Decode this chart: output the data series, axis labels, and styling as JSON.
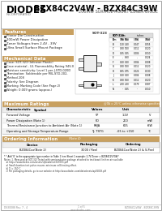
{
  "title": "BZX84C2V4W - BZX84C39W",
  "subtitle": "200mW SURFACE MOUNT ZENER DIODE",
  "logo_text": "DIODES",
  "logo_sub": "INCORPORATED",
  "bg_color": "#f5f5f5",
  "section_header_color": "#c8a060",
  "border_color": "#aaaaaa",
  "text_color": "#222222",
  "footer_left": "DS30088 Rev. 7 - 4",
  "footer_center": "1 of 5",
  "footer_url": "www.diodes.com",
  "footer_right": "BZX84C2V4W - BZX84C39W",
  "features": [
    "Planar Die Construction",
    "200mW Power Dissipation",
    "Zener Voltages from 2.4V - 39V",
    "Ultra Small Surface Mount Package"
  ],
  "mechanical_data": [
    "Case: SOT-323 (Infineon Plastic)",
    "Case material - UL Flammability Rating 94V-0",
    "Moisture sensitivity: Level 1 per J-STD-020D",
    "Termination: Solderable per MIL-STD-202,",
    "Method 208",
    "Polarity: See Diagram",
    "Marking: Marking Code (See Page 2)",
    "Weight: 0.009 grams (approx.)"
  ],
  "max_ratings_title": "Maximum Ratings",
  "max_ratings_note": "@TA = 25°C unless otherwise specified",
  "max_ratings_headers": [
    "Characteristic",
    "Symbol",
    "Values",
    "Unit"
  ],
  "max_ratings_rows": [
    [
      "Forward Voltage",
      "VF",
      "1.2V",
      "V"
    ],
    [
      "Power Dissipation (Note 1)",
      "PD",
      "200",
      "mW"
    ],
    [
      "Thermal Resistance Junction to Ambient Air (Note 1)",
      "RθJA",
      "625",
      "K/W"
    ],
    [
      "Operating and Storage Temperature Range",
      "TJ, TSTG",
      "-65 to +150",
      "°C"
    ]
  ],
  "ordering_title": "Ordering Information",
  "ordering_note": "(Note 4)",
  "ordering_headers": [
    "Device",
    "Packaging",
    "Ordering"
  ],
  "ordering_rows": [
    [
      "BZX84Cxx(Note 2)",
      "3000 / Reel",
      "BZX84Cxx(Note 2) & S-Peel"
    ]
  ],
  "footnote": "* Add 'G' to the appropriate type number in Table 1 (see Sheet 1 example: 2.7V Zener = BZX84C2V7GW*",
  "notes": [
    "Notes: 1. Measured at SOT-323 Tested with semiconductor package attached to test board (in free air available",
    "   at https://www.diodes.com/assets/Uploads/sot323/001.pdf",
    "   a) Small duration test pulse ensures minimum self-heating effect.",
    "   b) TJ = 150°C.",
    "   c) For packaging details, go to our website at http://www.diodes.com/datasheets/ap02008.pdf"
  ],
  "sot323_label": "SOT-323",
  "package_dims": [
    "A",
    "B",
    "C",
    "D",
    "E",
    "F",
    "G",
    "H",
    "J",
    "K",
    "L",
    "N"
  ],
  "package_mm_min": [
    "0.80",
    "1.20",
    "0.30",
    "0.15",
    "-",
    "0.10",
    "0.30",
    "0.65",
    "0.10",
    "0.30",
    "2.00",
    "-"
  ],
  "package_mm_max": [
    "1.00",
    "1.40",
    "0.50",
    "0.25",
    "0.60",
    "0.20",
    "0.50",
    "0.75",
    "0.20",
    "0.50",
    "2.20",
    "0.25"
  ],
  "package_in_min": [
    "0.031",
    "0.047",
    "0.012",
    "0.006",
    "-",
    "0.004",
    "0.012",
    "0.026",
    "0.004",
    "0.012",
    "0.079",
    "-"
  ],
  "package_in_max": [
    "0.039",
    "0.055",
    "0.020",
    "0.010",
    "0.024",
    "0.008",
    "0.020",
    "0.030",
    "0.008",
    "0.020",
    "0.087",
    "0.010"
  ]
}
